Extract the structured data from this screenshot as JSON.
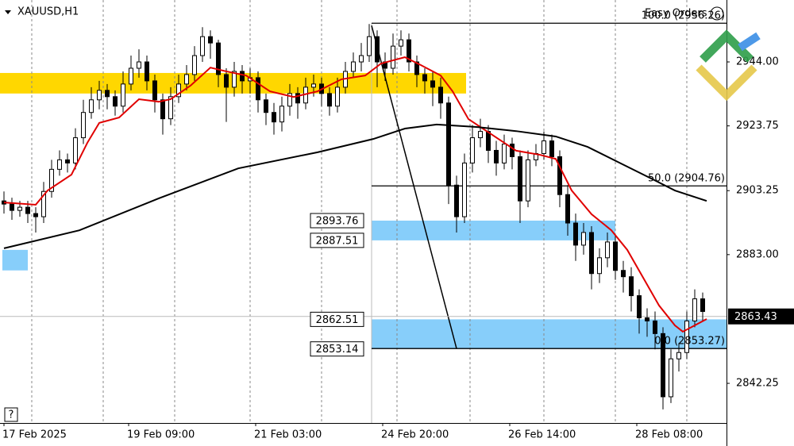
{
  "chart_data": {
    "type": "candlestick",
    "title": "XAUUSD,H1",
    "corner_label": "Easy Orders",
    "help": "?",
    "bull_color": "#ffffff",
    "bear_color": "#000000",
    "xlim": [
      -0.5,
      91
    ],
    "ylim": [
      2829.7,
      2963.6
    ],
    "xticks": [
      3.5,
      12.5,
      21.5,
      31,
      40,
      49.5,
      58.7,
      68,
      77,
      86
    ],
    "x_labels": [
      {
        "value": 0,
        "label": "17 Feb 2025"
      },
      {
        "value": 15.7,
        "label": "19 Feb 09:00"
      },
      {
        "value": 31.7,
        "label": "21 Feb 03:00"
      },
      {
        "value": 47.7,
        "label": "24 Feb 20:00"
      },
      {
        "value": 63.7,
        "label": "26 Feb 14:00"
      },
      {
        "value": 79.7,
        "label": "28 Feb 08:00"
      }
    ],
    "yticks": [
      {
        "value": 2944,
        "label": "2944.00"
      },
      2923.75,
      2903.25,
      {
        "value": 2883,
        "label": "2883.00"
      },
      2842.25
    ],
    "current_price": 2863.43,
    "candles": [
      [
        2900,
        2903,
        2896,
        2899
      ],
      [
        2899,
        2901,
        2894,
        2897
      ],
      [
        2897,
        2900,
        2895,
        2898
      ],
      [
        2898,
        2900,
        2893,
        2896
      ],
      [
        2896,
        2898,
        2890,
        2895
      ],
      [
        2895,
        2906,
        2893,
        2903
      ],
      [
        2903,
        2913,
        2901,
        2910
      ],
      [
        2910,
        2916,
        2908,
        2913
      ],
      [
        2913,
        2915,
        2909,
        2912
      ],
      [
        2912,
        2923,
        2910,
        2920
      ],
      [
        2920,
        2932,
        2918,
        2928
      ],
      [
        2928,
        2936,
        2926,
        2932
      ],
      [
        2932,
        2938,
        2929,
        2935
      ],
      [
        2935,
        2937,
        2929,
        2933
      ],
      [
        2933,
        2935,
        2927,
        2930
      ],
      [
        2930,
        2941,
        2928,
        2937
      ],
      [
        2937,
        2946,
        2935,
        2942
      ],
      [
        2942,
        2948,
        2939,
        2944
      ],
      [
        2944,
        2946,
        2935,
        2938
      ],
      [
        2938,
        2940,
        2928,
        2932
      ],
      [
        2932,
        2934,
        2921,
        2926
      ],
      [
        2926,
        2936,
        2924,
        2933
      ],
      [
        2933,
        2940,
        2931,
        2937
      ],
      [
        2937,
        2943,
        2935,
        2940
      ],
      [
        2940,
        2949,
        2938,
        2946
      ],
      [
        2946,
        2955,
        2944,
        2952
      ],
      [
        2952,
        2954,
        2945,
        2950
      ],
      [
        2950,
        2951,
        2936,
        2940
      ],
      [
        2940,
        2942,
        2925,
        2936
      ],
      [
        2936,
        2944,
        2933,
        2941
      ],
      [
        2941,
        2943,
        2934,
        2938
      ],
      [
        2938,
        2942,
        2934,
        2939
      ],
      [
        2939,
        2941,
        2928,
        2932
      ],
      [
        2932,
        2934,
        2924,
        2928
      ],
      [
        2928,
        2931,
        2921,
        2925
      ],
      [
        2925,
        2933,
        2922,
        2930
      ],
      [
        2930,
        2937,
        2927,
        2934
      ],
      [
        2934,
        2936,
        2926,
        2931
      ],
      [
        2931,
        2939,
        2929,
        2936
      ],
      [
        2936,
        2940,
        2933,
        2937
      ],
      [
        2937,
        2939,
        2930,
        2934
      ],
      [
        2934,
        2936,
        2927,
        2930
      ],
      [
        2930,
        2939,
        2928,
        2936
      ],
      [
        2936,
        2944,
        2934,
        2941
      ],
      [
        2941,
        2947,
        2939,
        2944
      ],
      [
        2944,
        2950,
        2941,
        2946
      ],
      [
        2946,
        2956,
        2944,
        2952
      ],
      [
        2952,
        2954,
        2936,
        2944
      ],
      [
        2944,
        2947,
        2938,
        2942
      ],
      [
        2942,
        2953,
        2940,
        2949
      ],
      [
        2949,
        2954,
        2946,
        2951
      ],
      [
        2951,
        2953,
        2941,
        2944
      ],
      [
        2944,
        2946,
        2936,
        2940
      ],
      [
        2940,
        2942,
        2934,
        2938
      ],
      [
        2938,
        2941,
        2930,
        2936
      ],
      [
        2936,
        2939,
        2926,
        2931
      ],
      [
        2931,
        2933,
        2899,
        2905
      ],
      [
        2905,
        2908,
        2890,
        2895
      ],
      [
        2895,
        2915,
        2893,
        2912
      ],
      [
        2912,
        2924,
        2909,
        2920
      ],
      [
        2920,
        2926,
        2917,
        2922
      ],
      [
        2922,
        2924,
        2912,
        2916
      ],
      [
        2916,
        2919,
        2908,
        2912
      ],
      [
        2912,
        2921,
        2910,
        2918
      ],
      [
        2918,
        2920,
        2910,
        2914
      ],
      [
        2914,
        2916,
        2893,
        2900
      ],
      [
        2900,
        2916,
        2898,
        2913
      ],
      [
        2913,
        2918,
        2911,
        2915
      ],
      [
        2915,
        2922,
        2913,
        2919
      ],
      [
        2919,
        2921,
        2911,
        2914
      ],
      [
        2914,
        2916,
        2898,
        2902
      ],
      [
        2902,
        2905,
        2889,
        2893
      ],
      [
        2893,
        2896,
        2881,
        2886
      ],
      [
        2886,
        2893,
        2883,
        2890
      ],
      [
        2890,
        2892,
        2872,
        2877
      ],
      [
        2877,
        2885,
        2874,
        2882
      ],
      [
        2882,
        2890,
        2879,
        2887
      ],
      [
        2887,
        2889,
        2875,
        2878
      ],
      [
        2878,
        2881,
        2871,
        2876
      ],
      [
        2876,
        2879,
        2865,
        2870
      ],
      [
        2870,
        2872,
        2858,
        2863
      ],
      [
        2863,
        2866,
        2857,
        2862
      ],
      [
        2862,
        2865,
        2853,
        2858
      ],
      [
        2858,
        2860,
        2834,
        2838
      ],
      [
        2838,
        2853,
        2836,
        2850
      ],
      [
        2850,
        2855,
        2846,
        2852
      ],
      [
        2852,
        2865,
        2850,
        2862
      ],
      [
        2862,
        2872,
        2860,
        2869
      ],
      [
        2869,
        2871,
        2862,
        2865
      ]
    ],
    "series": [
      {
        "color": "#e00000",
        "x": [
          0,
          4,
          5.5,
          8.5,
          10.5,
          12,
          14.5,
          17,
          19.5,
          21,
          23.5,
          26,
          28,
          30.5,
          33.5,
          36.5,
          39.5,
          42.5,
          45.5,
          47.5,
          50.5,
          52.5,
          55,
          56.5,
          58.5,
          61.5,
          64.5,
          67.5,
          69.5,
          71.5,
          74,
          76.5,
          78.5,
          80.5,
          82.5,
          84.5,
          85.5,
          87,
          88.5
        ],
        "values": [
          2899.5,
          2898.8,
          2903.3,
          2908.3,
          2918.4,
          2924.7,
          2926.4,
          2932.2,
          2931.4,
          2932.2,
          2936.5,
          2942.2,
          2941.0,
          2939.7,
          2934.7,
          2932.9,
          2934.7,
          2938.5,
          2939.7,
          2943.5,
          2945.5,
          2943.0,
          2939.7,
          2934.7,
          2925.9,
          2920.9,
          2915.9,
          2914.6,
          2913.3,
          2903.3,
          2895.8,
          2890.7,
          2884.5,
          2875.7,
          2866.9,
          2860.6,
          2858.6,
          2860.6,
          2862.6
        ]
      },
      {
        "color": "#000000",
        "x": [
          0,
          9.5,
          19.5,
          29.5,
          39.5,
          46.5,
          50.5,
          54.5,
          59.5,
          64.5,
          69.5,
          73.5,
          77.5,
          81.5,
          84.5,
          88.5
        ],
        "values": [
          2885.0,
          2890.7,
          2900.8,
          2910.3,
          2915.4,
          2919.6,
          2922.9,
          2924.2,
          2923.4,
          2922.1,
          2920.4,
          2917.1,
          2912.1,
          2907.1,
          2903.3,
          2900.0
        ]
      }
    ],
    "zones": [
      {
        "color": "#ffd700",
        "x": [
          -0.5,
          58.2
        ],
        "y": [
          2934,
          2940.5
        ]
      },
      {
        "color": "#87cefa",
        "x": [
          -0.2,
          3
        ],
        "y": [
          2878,
          2884.5
        ]
      },
      {
        "color": "#87cefa",
        "x": [
          46.3,
          77
        ],
        "y": [
          2887.51,
          2893.76
        ]
      },
      {
        "color": "#87cefa",
        "x": [
          46.3,
          91
        ],
        "y": [
          2853.14,
          2862.51
        ]
      }
    ],
    "labeled_zones": [
      2,
      3
    ],
    "trendline": {
      "x": [
        46.3,
        57
      ],
      "y": [
        2955.5,
        2853.27
      ]
    },
    "fib": {
      "x": [
        46.3,
        91
      ],
      "levels": [
        {
          "value": 2956.26,
          "label": "100.0 (2956.26)"
        },
        {
          "value": 2904.76,
          "label": "50.0 (2904.76)"
        },
        {
          "value": 2853.27,
          "label": "0.0 (2853.27)"
        }
      ]
    }
  }
}
